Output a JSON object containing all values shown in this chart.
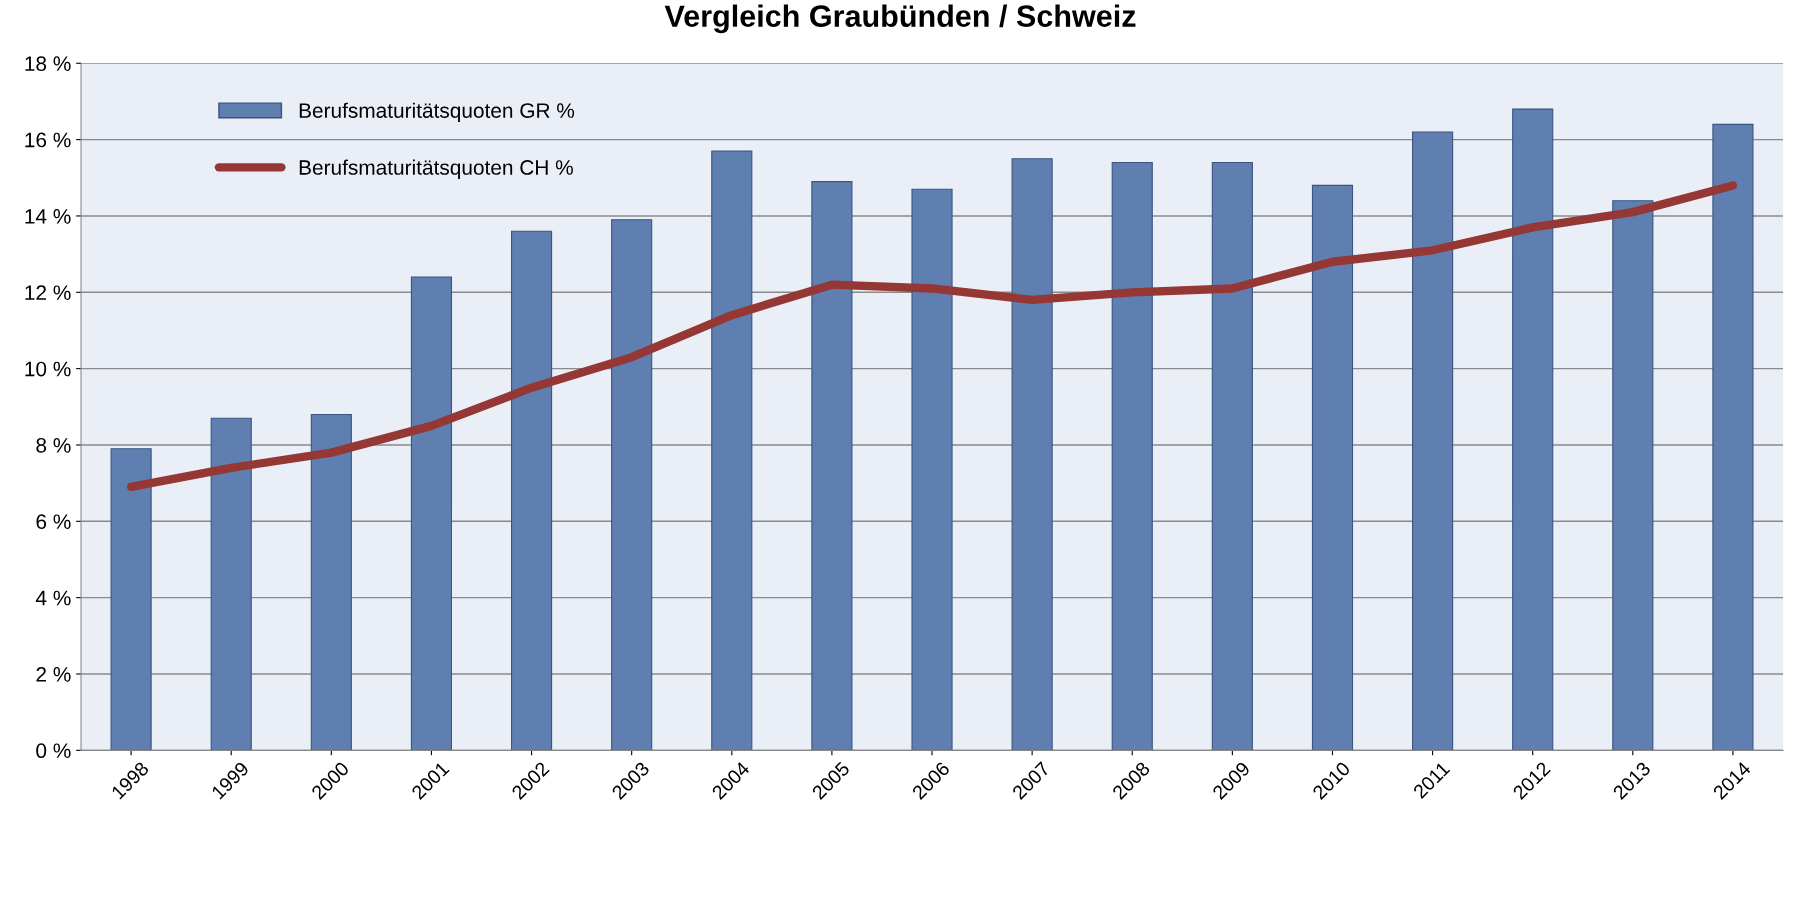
{
  "chart_data": {
    "type": "bar",
    "title": "Vergleich Graubünden / Schweiz",
    "categories": [
      "1998",
      "1999",
      "2000",
      "2001",
      "2002",
      "2003",
      "2004",
      "2005",
      "2006",
      "2007",
      "2008",
      "2009",
      "2010",
      "2011",
      "2012",
      "2013",
      "2014"
    ],
    "series": [
      {
        "name": "Berufsmaturitätsquoten GR %",
        "color": "#5f7fb0",
        "values": [
          7.9,
          8.7,
          8.8,
          12.4,
          13.6,
          13.9,
          15.7,
          14.9,
          14.7,
          15.5,
          15.4,
          15.4,
          14.8,
          16.2,
          16.8,
          14.4,
          16.4
        ]
      },
      {
        "name": "Berufsmaturitätsquoten CH %",
        "type": "line",
        "color": "#953735",
        "values": [
          6.9,
          7.4,
          7.8,
          8.5,
          9.5,
          10.3,
          11.4,
          12.2,
          12.1,
          11.8,
          12.0,
          12.1,
          12.8,
          13.1,
          13.7,
          14.1,
          14.8
        ]
      }
    ],
    "ylim": [
      0,
      18
    ],
    "yticks": [
      {
        "value": 0,
        "label": "0 %"
      },
      {
        "value": 2,
        "label": "2 %"
      },
      {
        "value": 4,
        "label": "4 %"
      },
      {
        "value": 6,
        "label": "6 %"
      },
      {
        "value": 8,
        "label": "8 %"
      },
      {
        "value": 10,
        "label": "10 %"
      },
      {
        "value": 12,
        "label": "12 %"
      },
      {
        "value": 14,
        "label": "14 %"
      },
      {
        "value": 16,
        "label": "16 %"
      },
      {
        "value": 18,
        "label": "18 %"
      }
    ],
    "grid": "y",
    "legend": "top left",
    "marker": "none",
    "line_style": "solid"
  }
}
